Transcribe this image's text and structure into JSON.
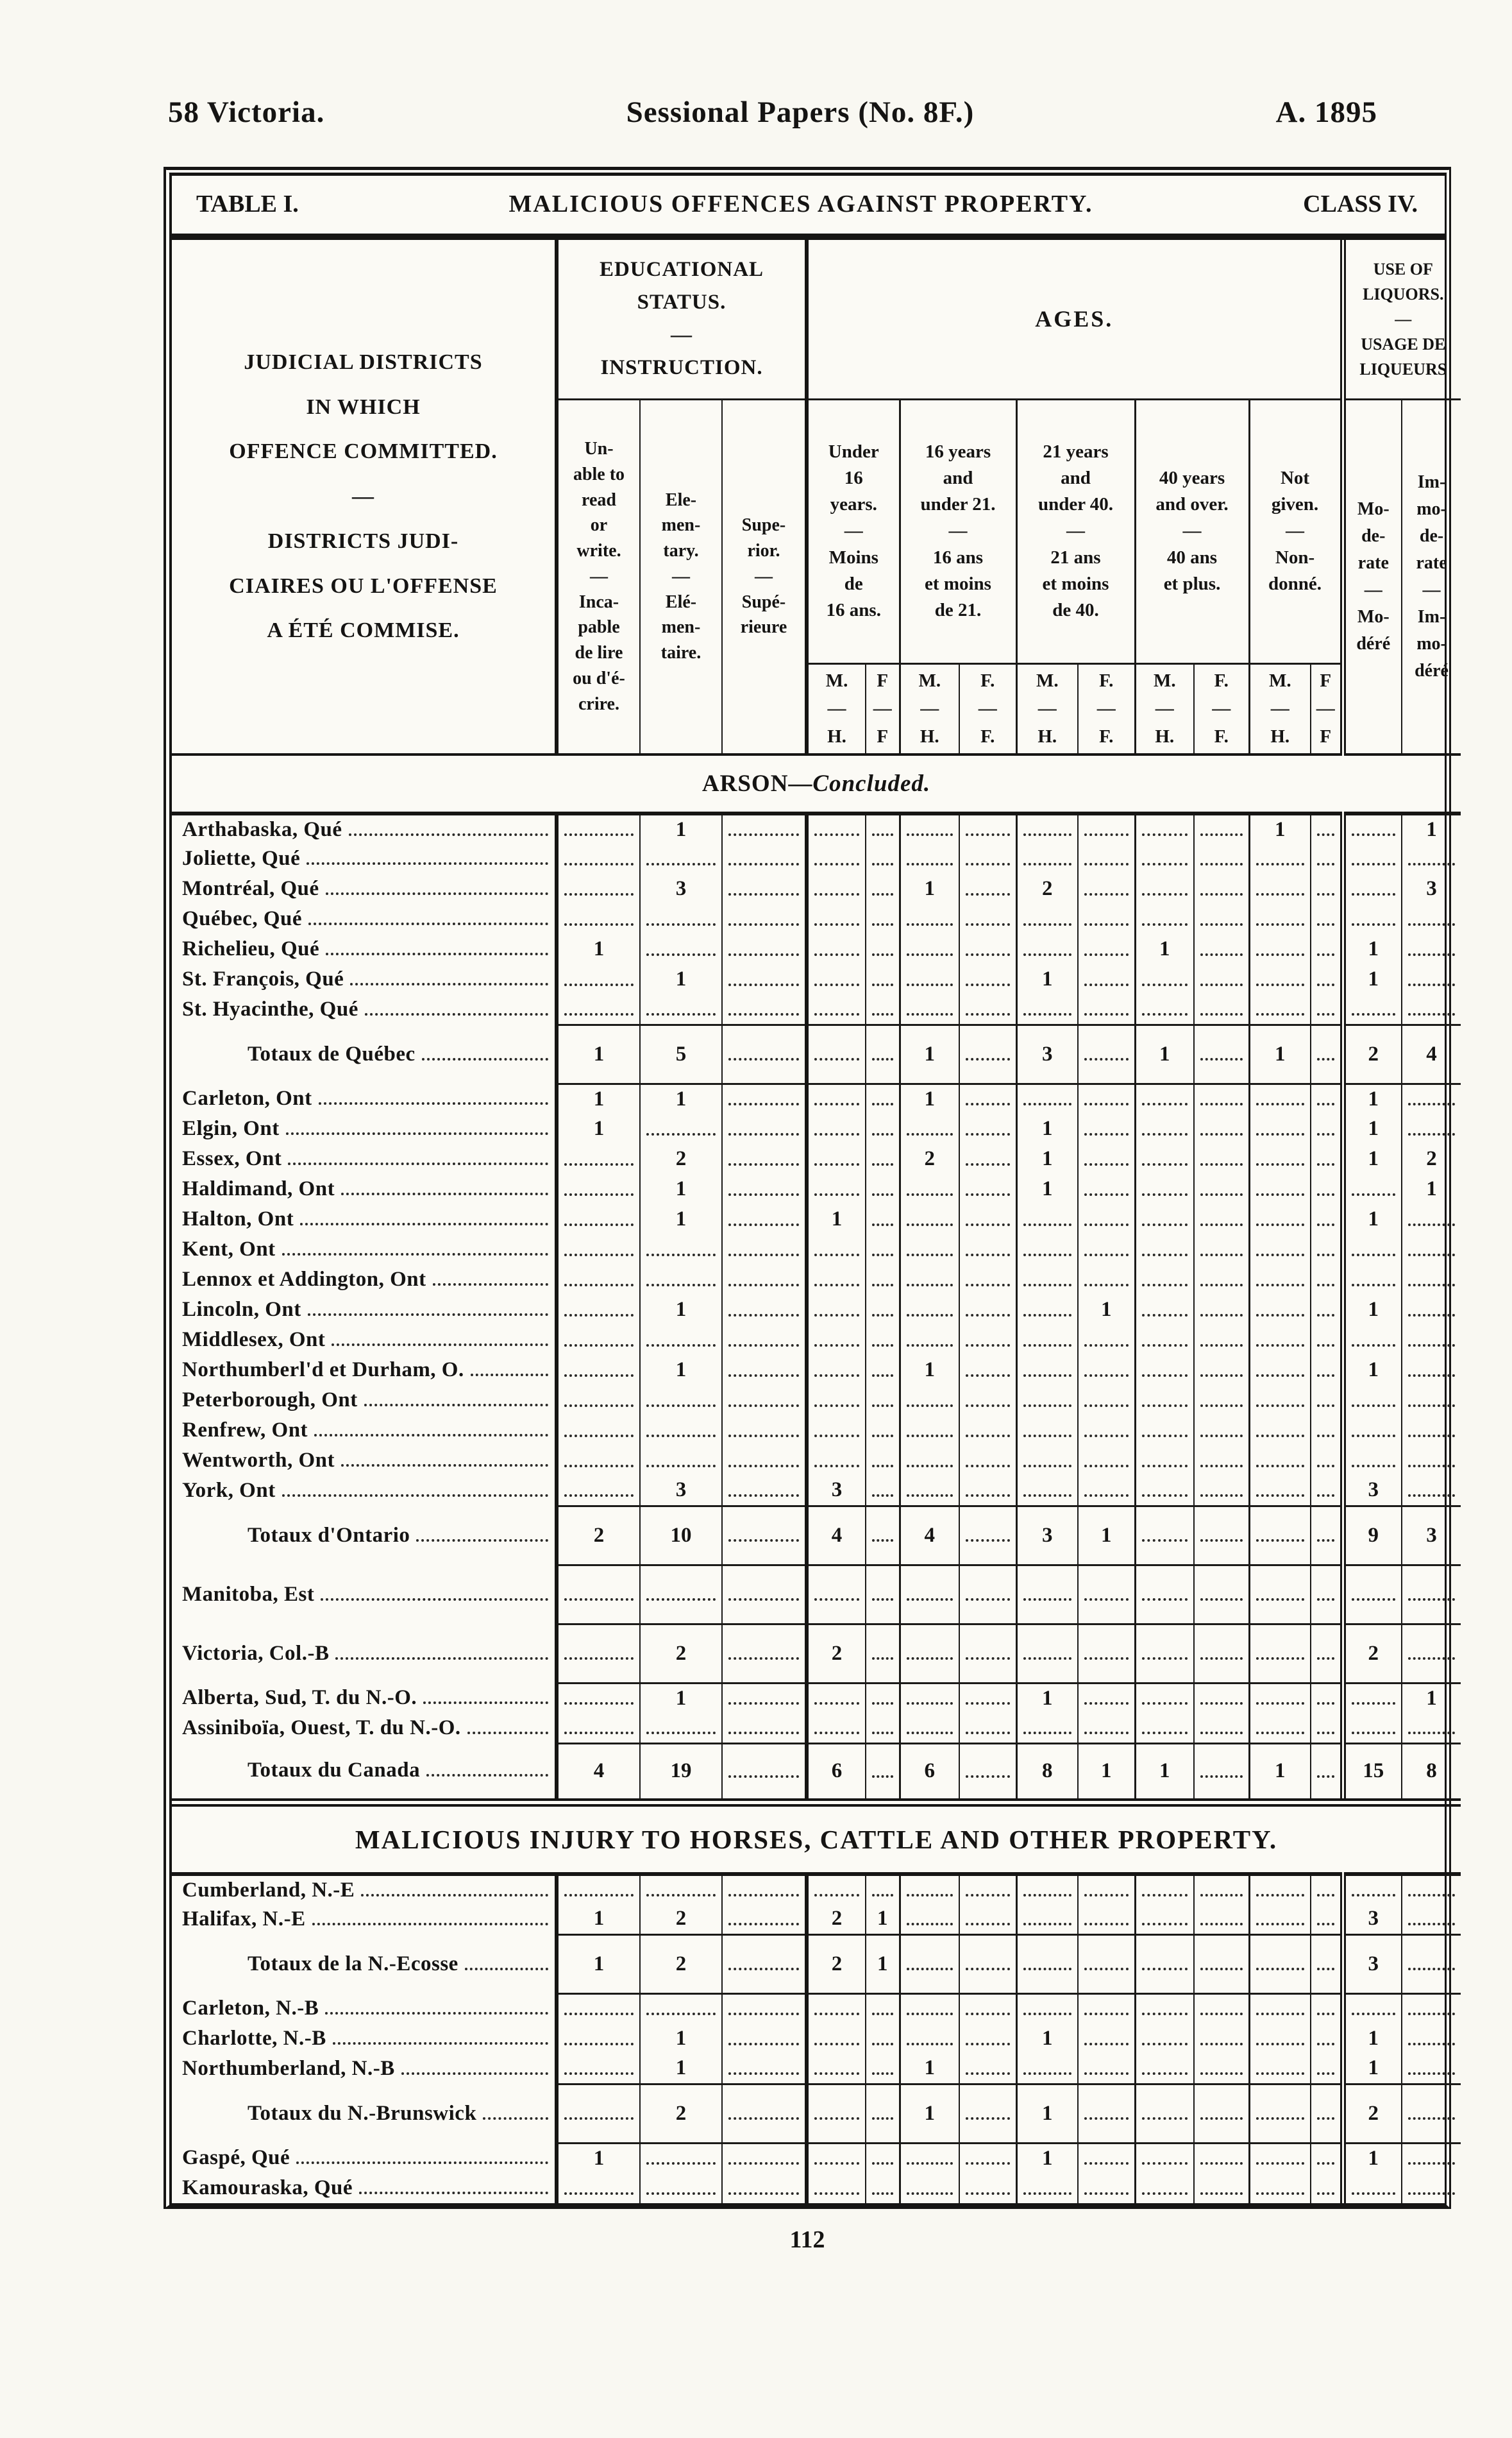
{
  "page_header": {
    "left": "58 Victoria.",
    "center": "Sessional Papers (No. 8F.)",
    "right": "A. 1895"
  },
  "table_band": {
    "left": "TABLE I.",
    "center": "MALICIOUS OFFENCES AGAINST PROPERTY.",
    "right": "CLASS IV."
  },
  "columns": {
    "district": "JUDICIAL DISTRICTS\nIN WHICH\nOFFENCE COMMITTED.\n—\nDISTRICTS JUDI-\nCIAIRES OU L'OFFENSE\nA ÉTÉ COMMISE.",
    "education_group": "EDUCATIONAL\nSTATUS.\n—\nINSTRUCTION.",
    "ages_group": "AGES.",
    "liquors_group": "USE OF\nLIQUORS.\n—\nUSAGE DE\nLIQUEURS",
    "unable": "Un-\nable to\nread\nor\nwrite.\n—\nInca-\npable\nde lire\nou d'é-\ncrire.",
    "elementary": "Ele-\nmen-\ntary.\n—\nElé-\nmen-\ntaire.",
    "superior": "Supe-\nrior.\n—\nSupé-\nrieure",
    "age_groups": [
      {
        "label": "Under\n16\nyears.\n—\nMoins\nde\n16 ans."
      },
      {
        "label": "16 years\nand\nunder 21.\n—\n16 ans\net moins\nde 21."
      },
      {
        "label": "21 years\nand\nunder 40.\n—\n21 ans\net moins\nde 40."
      },
      {
        "label": "40 years\nand over.\n—\n40 ans\net plus."
      },
      {
        "label": "Not\ngiven.\n—\nNon-\ndonné."
      }
    ],
    "mf": [
      "M.\n—\nH.",
      "F\n—\nF",
      "M.\n—\nH.",
      "F.\n—\nF.",
      "M.\n—\nH.",
      "F.\n—\nF.",
      "M.\n—\nH.",
      "F.\n—\nF.",
      "M.\n—\nH.",
      "F\n—\nF"
    ],
    "moderate": "Mo-\nde-\nrate\n—\nMo-\ndéré",
    "immoderate": "Im-\nmo-\nde-\nrate\n—\nIm-\nmo-\ndéré"
  },
  "sections": [
    {
      "id": "arson",
      "title_main": "ARSON—",
      "title_italic": "Concluded.",
      "rows": [
        {
          "n": "Arthabaska, Qué",
          "k": "data",
          "v": [
            "",
            "1",
            "",
            "",
            "",
            "",
            "",
            "",
            "",
            "",
            "",
            "1",
            "",
            "",
            "1"
          ]
        },
        {
          "n": "Joliette, Qué",
          "k": "data",
          "v": [
            "",
            "",
            "",
            "",
            "",
            "",
            "",
            "",
            "",
            "",
            "",
            "",
            "",
            "",
            ""
          ]
        },
        {
          "n": "Montréal, Qué",
          "k": "data",
          "v": [
            "",
            "3",
            "",
            "",
            "",
            "1",
            "",
            "2",
            "",
            "",
            "",
            "",
            "",
            "",
            "3"
          ]
        },
        {
          "n": "Québec, Qué",
          "k": "data",
          "v": [
            "",
            "",
            "",
            "",
            "",
            "",
            "",
            "",
            "",
            "",
            "",
            "",
            "",
            "",
            ""
          ]
        },
        {
          "n": "Richelieu, Qué",
          "k": "data",
          "v": [
            "1",
            "",
            "",
            "",
            "",
            "",
            "",
            "",
            "",
            "1",
            "",
            "",
            "",
            "1",
            ""
          ]
        },
        {
          "n": "St. François, Qué",
          "k": "data",
          "v": [
            "",
            "1",
            "",
            "",
            "",
            "",
            "",
            "1",
            "",
            "",
            "",
            "",
            "",
            "1",
            ""
          ]
        },
        {
          "n": "St. Hyacinthe, Qué",
          "k": "data",
          "v": [
            "",
            "",
            "",
            "",
            "",
            "",
            "",
            "",
            "",
            "",
            "",
            "",
            "",
            "",
            ""
          ]
        },
        {
          "n": "Totaux de Québec",
          "k": "total",
          "v": [
            "1",
            "5",
            "",
            "",
            "",
            "1",
            "",
            "3",
            "",
            "1",
            "",
            "1",
            "",
            "2",
            "4"
          ]
        },
        {
          "n": "Carleton, Ont",
          "k": "data",
          "v": [
            "1",
            "1",
            "",
            "",
            "",
            "1",
            "",
            "",
            "",
            "",
            "",
            "",
            "",
            "1",
            ""
          ]
        },
        {
          "n": "Elgin, Ont",
          "k": "data",
          "v": [
            "1",
            "",
            "",
            "",
            "",
            "",
            "",
            "1",
            "",
            "",
            "",
            "",
            "",
            "1",
            ""
          ]
        },
        {
          "n": "Essex, Ont",
          "k": "data",
          "v": [
            "",
            "2",
            "",
            "",
            "",
            "2",
            "",
            "1",
            "",
            "",
            "",
            "",
            "",
            "1",
            "2"
          ]
        },
        {
          "n": "Haldimand, Ont",
          "k": "data",
          "v": [
            "",
            "1",
            "",
            "",
            "",
            "",
            "",
            "1",
            "",
            "",
            "",
            "",
            "",
            "",
            "1"
          ]
        },
        {
          "n": "Halton, Ont",
          "k": "data",
          "v": [
            "",
            "1",
            "",
            "1",
            "",
            "",
            "",
            "",
            "",
            "",
            "",
            "",
            "",
            "1",
            ""
          ]
        },
        {
          "n": "Kent, Ont",
          "k": "data",
          "v": [
            "",
            "",
            "",
            "",
            "",
            "",
            "",
            "",
            "",
            "",
            "",
            "",
            "",
            "",
            ""
          ]
        },
        {
          "n": "Lennox et Addington, Ont",
          "k": "data",
          "v": [
            "",
            "",
            "",
            "",
            "",
            "",
            "",
            "",
            "",
            "",
            "",
            "",
            "",
            "",
            ""
          ]
        },
        {
          "n": "Lincoln, Ont",
          "k": "data",
          "v": [
            "",
            "1",
            "",
            "",
            "",
            "",
            "",
            "",
            "1",
            "",
            "",
            "",
            "",
            "1",
            ""
          ]
        },
        {
          "n": "Middlesex, Ont",
          "k": "data",
          "v": [
            "",
            "",
            "",
            "",
            "",
            "",
            "",
            "",
            "",
            "",
            "",
            "",
            "",
            "",
            ""
          ]
        },
        {
          "n": "Northumberl'd et Durham, O.",
          "k": "data",
          "v": [
            "",
            "1",
            "",
            "",
            "",
            "1",
            "",
            "",
            "",
            "",
            "",
            "",
            "",
            "1",
            ""
          ]
        },
        {
          "n": "Peterborough, Ont",
          "k": "data",
          "v": [
            "",
            "",
            "",
            "",
            "",
            "",
            "",
            "",
            "",
            "",
            "",
            "",
            "",
            "",
            ""
          ]
        },
        {
          "n": "Renfrew, Ont",
          "k": "data",
          "v": [
            "",
            "",
            "",
            "",
            "",
            "",
            "",
            "",
            "",
            "",
            "",
            "",
            "",
            "",
            ""
          ]
        },
        {
          "n": "Wentworth, Ont",
          "k": "data",
          "v": [
            "",
            "",
            "",
            "",
            "",
            "",
            "",
            "",
            "",
            "",
            "",
            "",
            "",
            "",
            ""
          ]
        },
        {
          "n": "York, Ont",
          "k": "data",
          "v": [
            "",
            "3",
            "",
            "3",
            "",
            "",
            "",
            "",
            "",
            "",
            "",
            "",
            "",
            "3",
            ""
          ]
        },
        {
          "n": "Totaux d'Ontario",
          "k": "total",
          "v": [
            "2",
            "10",
            "",
            "4",
            "",
            "4",
            "",
            "3",
            "1",
            "",
            "",
            "",
            "",
            "9",
            "3"
          ]
        },
        {
          "n": "Manitoba, Est",
          "k": "single",
          "v": [
            "",
            "",
            "",
            "",
            "",
            "",
            "",
            "",
            "",
            "",
            "",
            "",
            "",
            "",
            ""
          ]
        },
        {
          "n": "Victoria, Col.-B",
          "k": "single",
          "v": [
            "",
            "2",
            "",
            "2",
            "",
            "",
            "",
            "",
            "",
            "",
            "",
            "",
            "",
            "2",
            ""
          ]
        },
        {
          "n": "Alberta, Sud, T. du N.-O.",
          "k": "data",
          "v": [
            "",
            "1",
            "",
            "",
            "",
            "",
            "",
            "1",
            "",
            "",
            "",
            "",
            "",
            "",
            "1"
          ]
        },
        {
          "n": "Assiniboïa, Ouest, T. du N.-O.",
          "k": "data",
          "rb": true,
          "v": [
            "",
            "",
            "",
            "",
            "",
            "",
            "",
            "",
            "",
            "",
            "",
            "",
            "",
            "",
            ""
          ]
        },
        {
          "n": "Totaux du Canada",
          "k": "total",
          "v": [
            "4",
            "19",
            "",
            "6",
            "",
            "6",
            "",
            "8",
            "1",
            "1",
            "",
            "1",
            "",
            "15",
            "8"
          ]
        }
      ]
    },
    {
      "id": "injury",
      "title_main": "MALICIOUS INJURY TO HORSES, CATTLE AND OTHER PROPERTY.",
      "title_italic": "",
      "rows": [
        {
          "n": "Cumberland, N.-E",
          "k": "data",
          "v": [
            "",
            "",
            "",
            "",
            "",
            "",
            "",
            "",
            "",
            "",
            "",
            "",
            "",
            "",
            ""
          ]
        },
        {
          "n": "Halifax, N.-E",
          "k": "data",
          "rb": true,
          "v": [
            "1",
            "2",
            "",
            "2",
            "1",
            "",
            "",
            "",
            "",
            "",
            "",
            "",
            "",
            "3",
            ""
          ]
        },
        {
          "n": "Totaux de la N.-Ecosse",
          "k": "total",
          "v": [
            "1",
            "2",
            "",
            "2",
            "1",
            "",
            "",
            "",
            "",
            "",
            "",
            "",
            "",
            "3",
            ""
          ]
        },
        {
          "n": "Carleton, N.-B",
          "k": "data",
          "v": [
            "",
            "",
            "",
            "",
            "",
            "",
            "",
            "",
            "",
            "",
            "",
            "",
            "",
            "",
            ""
          ]
        },
        {
          "n": "Charlotte, N.-B",
          "k": "data",
          "v": [
            "",
            "1",
            "",
            "",
            "",
            "",
            "",
            "1",
            "",
            "",
            "",
            "",
            "",
            "1",
            ""
          ]
        },
        {
          "n": "Northumberland, N.-B",
          "k": "data",
          "rb": true,
          "v": [
            "",
            "1",
            "",
            "",
            "",
            "1",
            "",
            "",
            "",
            "",
            "",
            "",
            "",
            "1",
            ""
          ]
        },
        {
          "n": "Totaux du N.-Brunswick",
          "k": "total",
          "v": [
            "",
            "2",
            "",
            "",
            "",
            "1",
            "",
            "1",
            "",
            "",
            "",
            "",
            "",
            "2",
            ""
          ]
        },
        {
          "n": "Gaspé, Qué",
          "k": "data",
          "v": [
            "1",
            "",
            "",
            "",
            "",
            "",
            "",
            "1",
            "",
            "",
            "",
            "",
            "",
            "1",
            ""
          ]
        },
        {
          "n": "Kamouraska, Qué",
          "k": "data",
          "v": [
            "",
            "",
            "",
            "",
            "",
            "",
            "",
            "",
            "",
            "",
            "",
            "",
            "",
            "",
            ""
          ]
        }
      ]
    }
  ],
  "footer": {
    "page_number": "112"
  }
}
